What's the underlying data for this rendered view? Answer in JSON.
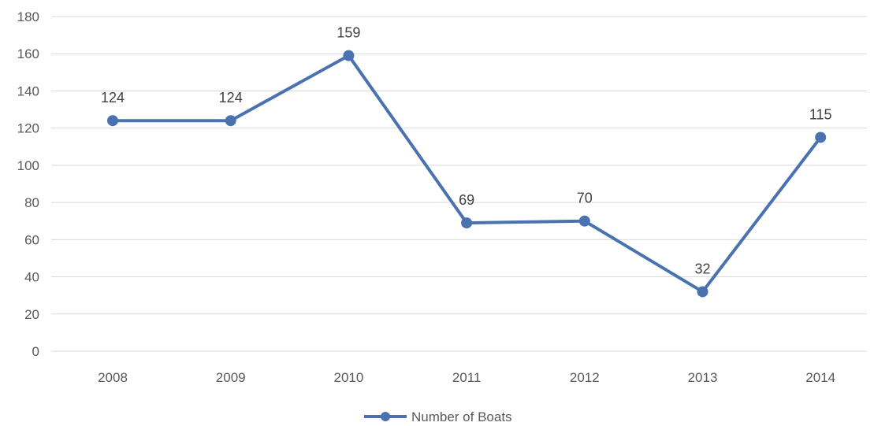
{
  "chart_data": {
    "type": "line",
    "title": "",
    "xlabel": "",
    "ylabel": "",
    "categories": [
      "2008",
      "2009",
      "2010",
      "2011",
      "2012",
      "2013",
      "2014"
    ],
    "series": [
      {
        "name": "Number of Boats",
        "values": [
          124,
          124,
          159,
          69,
          70,
          32,
          115
        ],
        "color": "#4a72b0"
      }
    ],
    "ylim": [
      0,
      180
    ],
    "yticks": [
      0,
      20,
      40,
      60,
      80,
      100,
      120,
      140,
      160,
      180
    ],
    "grid": true,
    "legend_position": "bottom",
    "data_labels": true
  }
}
